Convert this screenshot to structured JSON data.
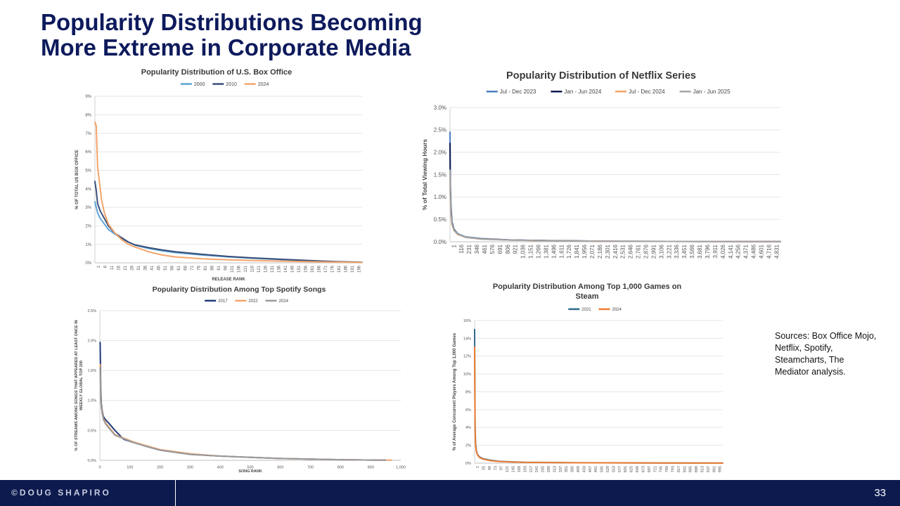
{
  "slide": {
    "title_line1": "Popularity Distributions Becoming",
    "title_line2": "More Extreme in Corporate Media",
    "sources": "Sources:  Box Office Mojo, Netflix, Spotify, Steamcharts, The Mediator analysis.",
    "footer_brand": "©DOUG SHAPIRO",
    "page_number": "33"
  },
  "chart_data": [
    {
      "id": "box",
      "type": "line",
      "title": "Popularity Distribution of U.S. Box Office",
      "xlabel": "RELEASE RANK",
      "ylabel": "% OF TOTAL US BOX OFFICE",
      "xlim": [
        1,
        200
      ],
      "ylim": [
        0,
        9
      ],
      "yticks": [
        0,
        1,
        2,
        3,
        4,
        5,
        6,
        7,
        8,
        9
      ],
      "ytick_labels": [
        "0%",
        "1%",
        "2%",
        "3%",
        "4%",
        "5%",
        "6%",
        "7%",
        "8%",
        "9%"
      ],
      "xtick_labels": [
        "1",
        "6",
        "11",
        "16",
        "21",
        "26",
        "31",
        "36",
        "41",
        "46",
        "51",
        "56",
        "61",
        "66",
        "71",
        "76",
        "81",
        "86",
        "91",
        "96",
        "101",
        "106",
        "111",
        "116",
        "121",
        "126",
        "131",
        "136",
        "141",
        "146",
        "151",
        "156",
        "161",
        "166",
        "171",
        "176",
        "181",
        "186",
        "191",
        "196"
      ],
      "legend": "top-center",
      "series": [
        {
          "name": "2000",
          "color": "#5ba3d6",
          "x": [
            1,
            2,
            3,
            5,
            8,
            11,
            16,
            21,
            26,
            31,
            41,
            51,
            61,
            81,
            101,
            121,
            141,
            161,
            181,
            200
          ],
          "values": [
            3.3,
            3.0,
            2.7,
            2.4,
            2.1,
            1.8,
            1.55,
            1.3,
            1.12,
            0.95,
            0.78,
            0.65,
            0.55,
            0.42,
            0.32,
            0.24,
            0.17,
            0.11,
            0.06,
            0.02
          ]
        },
        {
          "name": "2010",
          "color": "#3a4f7a",
          "x": [
            1,
            2,
            3,
            5,
            8,
            11,
            16,
            21,
            26,
            31,
            41,
            51,
            61,
            81,
            101,
            121,
            141,
            161,
            181,
            200
          ],
          "values": [
            4.4,
            3.9,
            3.2,
            2.8,
            2.4,
            2.0,
            1.6,
            1.35,
            1.12,
            0.97,
            0.82,
            0.7,
            0.6,
            0.46,
            0.34,
            0.26,
            0.19,
            0.12,
            0.07,
            0.03
          ]
        },
        {
          "name": "2024",
          "color": "#f4a46a",
          "x": [
            1,
            2,
            3,
            4,
            5,
            6,
            8,
            11,
            16,
            21,
            26,
            31,
            41,
            51,
            61,
            81,
            101,
            121,
            141,
            161,
            181,
            200
          ],
          "values": [
            7.6,
            7.4,
            5.2,
            4.6,
            4.0,
            3.4,
            2.7,
            2.1,
            1.6,
            1.25,
            1.0,
            0.85,
            0.6,
            0.42,
            0.32,
            0.22,
            0.16,
            0.12,
            0.09,
            0.06,
            0.04,
            0.02
          ]
        }
      ]
    },
    {
      "id": "netflix",
      "type": "line",
      "title": "Popularity Distribution of Netflix Series",
      "xlabel": "",
      "ylabel": "% of Total Viewing Hours",
      "xlim": [
        1,
        4900
      ],
      "ylim": [
        0,
        3.0
      ],
      "yticks": [
        0,
        0.5,
        1.0,
        1.5,
        2.0,
        2.5,
        3.0
      ],
      "ytick_labels": [
        "0.0%",
        "0.5%",
        "1.0%",
        "1.5%",
        "2.0%",
        "2.5%",
        "3.0%"
      ],
      "xtick_labels": [
        "1",
        "116",
        "231",
        "346",
        "461",
        "576",
        "691",
        "806",
        "921",
        "1,036",
        "1,151",
        "1,266",
        "1,381",
        "1,496",
        "1,611",
        "1,726",
        "1,841",
        "1,956",
        "2,071",
        "2,186",
        "2,301",
        "2,416",
        "2,531",
        "2,646",
        "2,761",
        "2,876",
        "2,991",
        "3,106",
        "3,221",
        "3,336",
        "3,451",
        "3,566",
        "3,681",
        "3,796",
        "3,911",
        "4,026",
        "4,141",
        "4,256",
        "4,371",
        "4,486",
        "4,601",
        "4,716",
        "4,831"
      ],
      "legend": "top-center",
      "series": [
        {
          "name": "Jul - Dec 2023",
          "color": "#4a7fc1",
          "x": [
            1,
            5,
            15,
            30,
            60,
            116,
            231,
            461,
            921,
            1500,
            2500,
            4900
          ],
          "values": [
            2.45,
            1.4,
            0.8,
            0.45,
            0.28,
            0.18,
            0.11,
            0.07,
            0.04,
            0.025,
            0.01,
            0.003
          ]
        },
        {
          "name": "Jan - Jun 2024",
          "color": "#0d1a4e",
          "x": [
            1,
            5,
            15,
            30,
            60,
            116,
            231,
            461,
            921,
            1500,
            2500,
            4900
          ],
          "values": [
            2.2,
            1.3,
            0.75,
            0.42,
            0.27,
            0.17,
            0.1,
            0.065,
            0.038,
            0.023,
            0.01,
            0.003
          ]
        },
        {
          "name": "Jul - Dec 2024",
          "color": "#f4a46a",
          "x": [
            1,
            5,
            15,
            30,
            60,
            116,
            231,
            461,
            921,
            1500,
            2500,
            4900
          ],
          "values": [
            1.5,
            1.0,
            0.6,
            0.38,
            0.25,
            0.16,
            0.1,
            0.06,
            0.035,
            0.02,
            0.01,
            0.003
          ]
        },
        {
          "name": "Jan - Jun 2025",
          "color": "#a6a6a6",
          "x": [
            1,
            5,
            15,
            30,
            60,
            116,
            231,
            461,
            921,
            1500,
            2500,
            4900
          ],
          "values": [
            1.6,
            1.1,
            0.65,
            0.4,
            0.26,
            0.17,
            0.1,
            0.062,
            0.036,
            0.021,
            0.01,
            0.003
          ]
        }
      ]
    },
    {
      "id": "spotify",
      "type": "line",
      "title": "Popularity Distribution Among Top Spotify Songs",
      "xlabel": "SONG RANK",
      "ylabel_lines": [
        "% OF STREAMS AMONG SONGS THAT APPEARED AT LEAST ONCE IN",
        "WEEKLY GLOBAL TOP 200"
      ],
      "xlim": [
        0,
        1000
      ],
      "ylim": [
        0,
        2.5
      ],
      "yticks": [
        0,
        0.5,
        1.0,
        1.5,
        2.0,
        2.5
      ],
      "ytick_labels": [
        "0.0%",
        "0.5%",
        "1.0%",
        "1.5%",
        "2.0%",
        "2.5%"
      ],
      "xticks": [
        0,
        100,
        200,
        300,
        400,
        500,
        600,
        700,
        800,
        900,
        1000
      ],
      "xtick_labels": [
        "0",
        "100",
        "200",
        "300",
        "400",
        "500",
        "600",
        "700",
        "800",
        "900",
        "1,000"
      ],
      "legend": "top-center",
      "series": [
        {
          "name": "2017",
          "color": "#1f3a7a",
          "x": [
            1,
            2,
            3,
            5,
            8,
            12,
            20,
            30,
            50,
            80,
            110,
            150,
            200,
            300,
            400,
            500,
            600,
            700,
            800,
            900,
            950
          ],
          "values": [
            1.97,
            1.6,
            1.2,
            0.95,
            0.82,
            0.73,
            0.67,
            0.62,
            0.5,
            0.35,
            0.3,
            0.24,
            0.17,
            0.1,
            0.07,
            0.05,
            0.03,
            0.02,
            0.01,
            0.005,
            0.003
          ]
        },
        {
          "name": "2022",
          "color": "#f4a46a",
          "x": [
            1,
            2,
            3,
            5,
            8,
            12,
            20,
            30,
            50,
            80,
            110,
            150,
            200,
            300,
            400,
            500,
            600,
            700,
            800,
            900,
            970
          ],
          "values": [
            1.6,
            1.35,
            1.05,
            0.9,
            0.8,
            0.7,
            0.62,
            0.56,
            0.43,
            0.37,
            0.31,
            0.25,
            0.18,
            0.11,
            0.07,
            0.05,
            0.03,
            0.02,
            0.01,
            0.005,
            0.002
          ]
        },
        {
          "name": "2024",
          "color": "#9a9a9a",
          "x": [
            1,
            2,
            3,
            5,
            8,
            12,
            20,
            30,
            50,
            80,
            110,
            150,
            200,
            300,
            400,
            500,
            600,
            700,
            800,
            900,
            950
          ],
          "values": [
            1.55,
            1.3,
            1.0,
            0.88,
            0.78,
            0.68,
            0.6,
            0.54,
            0.42,
            0.36,
            0.3,
            0.24,
            0.17,
            0.1,
            0.07,
            0.05,
            0.03,
            0.02,
            0.01,
            0.005,
            0.003
          ]
        }
      ]
    },
    {
      "id": "steam",
      "type": "line",
      "title_lines": [
        "Popularity Distribution Among Top 1,000 Games on",
        "Steam"
      ],
      "xlabel": "",
      "ylabel": "% of Average Concurrent Players Among Top 1,000 Games",
      "xlim": [
        1,
        1000
      ],
      "ylim": [
        0,
        16
      ],
      "yticks": [
        0,
        2,
        4,
        6,
        8,
        10,
        12,
        14,
        16
      ],
      "ytick_labels": [
        "0%",
        "2%",
        "4%",
        "6%",
        "8%",
        "10%",
        "12%",
        "14%",
        "16%"
      ],
      "xtick_labels": [
        "1",
        "25",
        "49",
        "73",
        "97",
        "121",
        "145",
        "169",
        "193",
        "217",
        "241",
        "265",
        "289",
        "313",
        "337",
        "361",
        "385",
        "409",
        "433",
        "457",
        "481",
        "505",
        "529",
        "553",
        "577",
        "601",
        "625",
        "649",
        "673",
        "697",
        "721",
        "745",
        "769",
        "793",
        "817",
        "841",
        "865",
        "889",
        "913",
        "937",
        "961",
        "985"
      ],
      "legend": "top-center",
      "series": [
        {
          "name": "2021",
          "color": "#2e6b8a",
          "x": [
            1,
            2,
            3,
            5,
            8,
            12,
            20,
            35,
            60,
            100,
            200,
            400,
            700,
            1000
          ],
          "values": [
            15.0,
            8.0,
            4.0,
            2.2,
            1.4,
            1.0,
            0.7,
            0.5,
            0.35,
            0.2,
            0.1,
            0.05,
            0.02,
            0.01
          ]
        },
        {
          "name": "2024",
          "color": "#ee7d32",
          "x": [
            1,
            2,
            3,
            5,
            8,
            12,
            20,
            35,
            60,
            100,
            200,
            400,
            700,
            1000
          ],
          "values": [
            13.0,
            7.0,
            3.5,
            2.0,
            1.3,
            0.95,
            0.65,
            0.45,
            0.3,
            0.18,
            0.09,
            0.04,
            0.02,
            0.01
          ]
        }
      ]
    }
  ]
}
